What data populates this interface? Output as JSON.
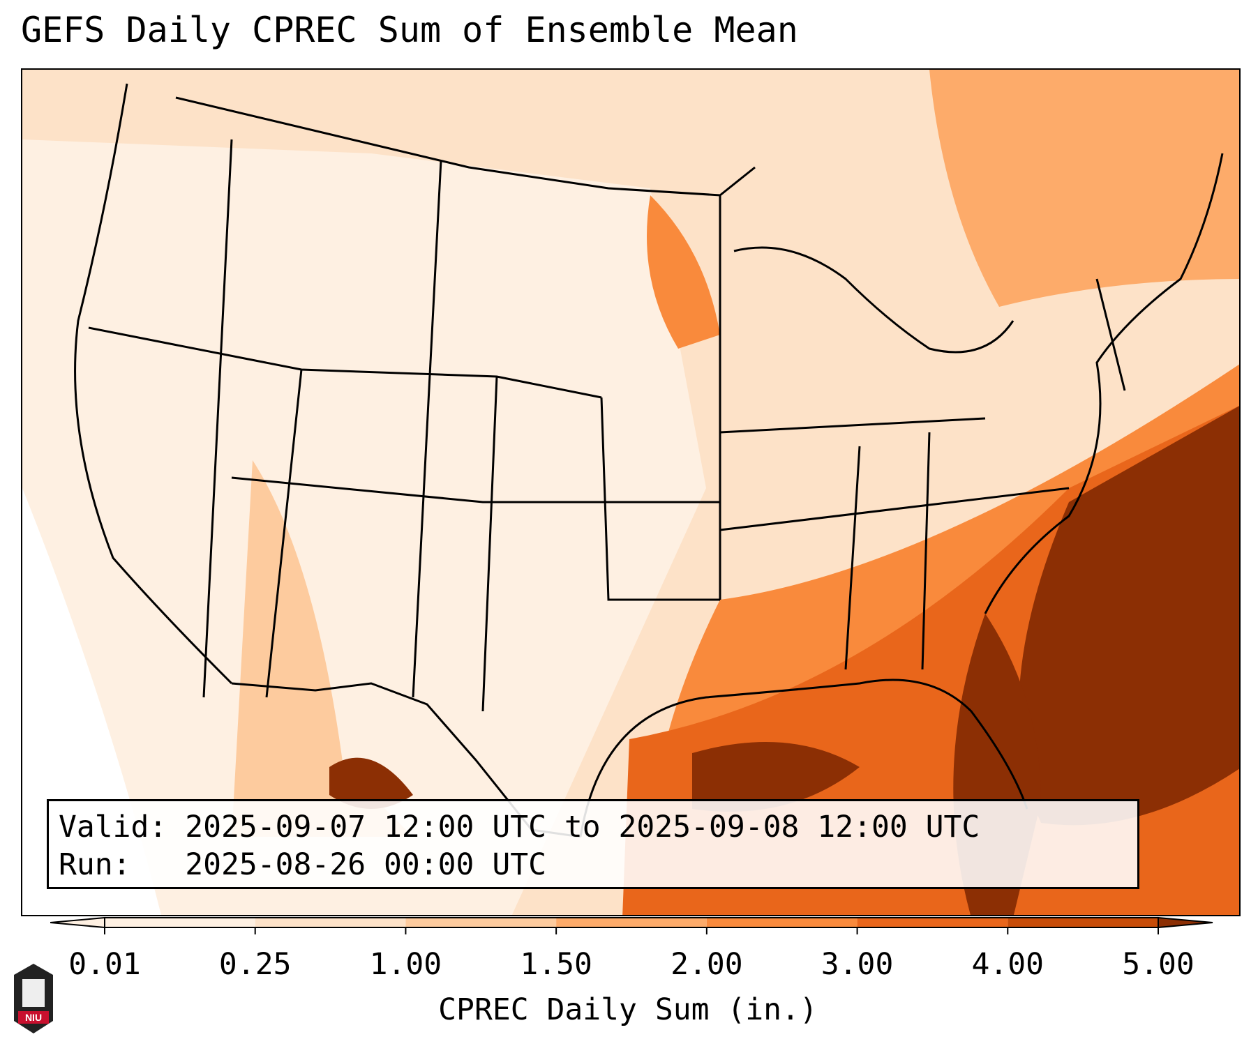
{
  "title": "GEFS Daily CPREC Sum of Ensemble Mean",
  "info": {
    "valid_line": "Valid: 2025-09-07 12:00 UTC to 2025-09-08 12:00 UTC",
    "run_line": "Run:   2025-08-26 00:00 UTC"
  },
  "colorbar": {
    "label": "CPREC Daily Sum (in.)",
    "ticks": [
      "0.01",
      "0.25",
      "1.00",
      "1.50",
      "2.00",
      "3.00",
      "4.00",
      "5.00"
    ],
    "colors": [
      "#fef0e2",
      "#fde2c8",
      "#fdcb9e",
      "#fdab6a",
      "#f98a3c",
      "#e9661b",
      "#c74c08",
      "#8c2f04"
    ],
    "extend": "both"
  },
  "logo": {
    "text": "NIU",
    "icon": "niu-logo-icon"
  }
}
